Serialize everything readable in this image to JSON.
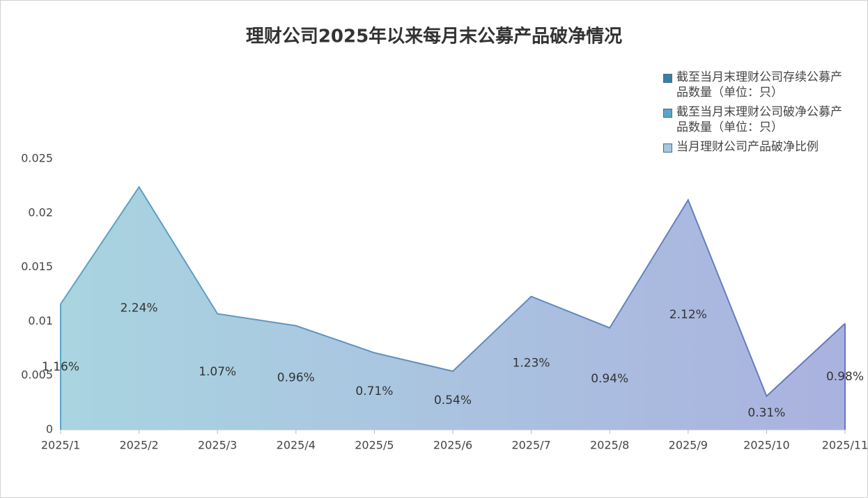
{
  "chart_data": {
    "type": "area",
    "title": "理财公司2025年以来每月末公募产品破净情况",
    "categories": [
      "2025/1",
      "2025/2",
      "2025/3",
      "2025/4",
      "2025/5",
      "2025/6",
      "2025/7",
      "2025/8",
      "2025/9",
      "2025/10",
      "2025/11"
    ],
    "series": [
      {
        "name": "截至当月末理财公司存续公募产品数量（单位：只）",
        "color": "#3b7ea6"
      },
      {
        "name": "截至当月末理财公司破净公募产品数量（单位：只）",
        "color": "#5aa6c8"
      },
      {
        "name": "当月理财公司产品破净比例",
        "color": "#a9c6e0",
        "values": [
          0.0116,
          0.0224,
          0.0107,
          0.0096,
          0.0071,
          0.0054,
          0.0123,
          0.0094,
          0.0212,
          0.0031,
          0.0098
        ],
        "value_labels": [
          "1.16%",
          "2.24%",
          "1.07%",
          "0.96%",
          "0.71%",
          "0.54%",
          "1.23%",
          "0.94%",
          "2.12%",
          "0.31%",
          "0.98%"
        ]
      }
    ],
    "ylim": [
      0,
      0.025
    ],
    "yticks": [
      0,
      0.005,
      0.01,
      0.015,
      0.02,
      0.025
    ],
    "grid": false
  }
}
